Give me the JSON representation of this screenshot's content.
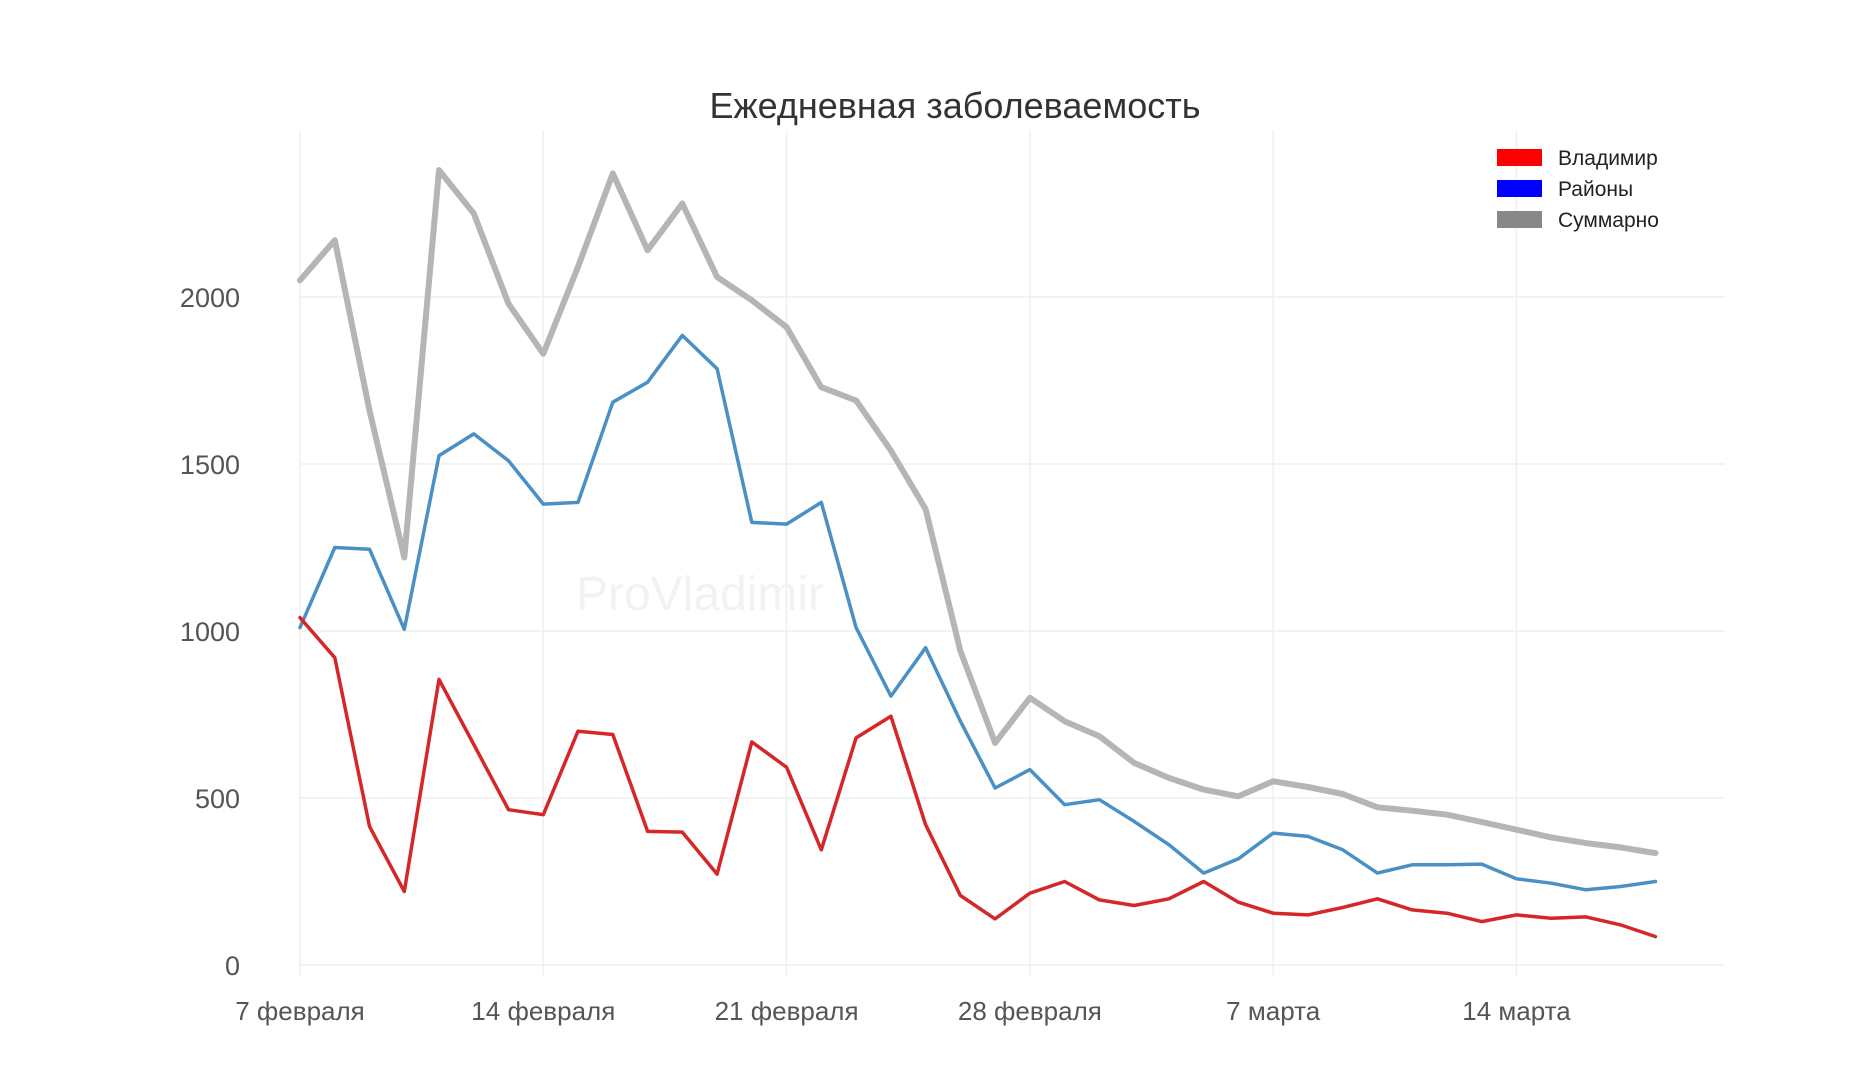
{
  "chart_data": {
    "type": "line",
    "title": "Ежедневная заболеваемость",
    "watermark": "ProVladimir",
    "xlabel": "",
    "ylabel": "",
    "x": [
      "2021-02-07",
      "2021-02-08",
      "2021-02-09",
      "2021-02-10",
      "2021-02-11",
      "2021-02-12",
      "2021-02-13",
      "2021-02-14",
      "2021-02-15",
      "2021-02-16",
      "2021-02-17",
      "2021-02-18",
      "2021-02-19",
      "2021-02-20",
      "2021-02-21",
      "2021-02-22",
      "2021-02-23",
      "2021-02-24",
      "2021-02-25",
      "2021-02-26",
      "2021-02-27",
      "2021-02-28",
      "2021-03-01",
      "2021-03-02",
      "2021-03-03",
      "2021-03-04",
      "2021-03-05",
      "2021-03-06",
      "2021-03-07",
      "2021-03-08",
      "2021-03-09",
      "2021-03-10",
      "2021-03-11",
      "2021-03-12",
      "2021-03-13",
      "2021-03-14",
      "2021-03-15",
      "2021-03-16",
      "2021-03-17",
      "2021-03-18"
    ],
    "xlim": [
      "2021-02-07",
      "2021-03-20"
    ],
    "ylim": [
      -30,
      2500
    ],
    "yticks": [
      0,
      500,
      1000,
      1500,
      2000
    ],
    "xticks": [
      {
        "x": "2021-02-07",
        "label": "7 февраля"
      },
      {
        "x": "2021-02-14",
        "label": "14 февраля"
      },
      {
        "x": "2021-02-21",
        "label": "21 февраля"
      },
      {
        "x": "2021-02-28",
        "label": "28 февраля"
      },
      {
        "x": "2021-03-07",
        "label": "7 марта"
      },
      {
        "x": "2021-03-14",
        "label": "14 марта"
      }
    ],
    "grid": true,
    "legend_position": "top-right",
    "series": [
      {
        "name": "Суммарно",
        "color": "#b5b5b5",
        "legend_color": "#888888",
        "values": [
          2050,
          2170,
          1660,
          1220,
          2380,
          2250,
          1980,
          1830,
          2090,
          2370,
          2140,
          2280,
          2060,
          1990,
          1910,
          1730,
          1690,
          1540,
          1365,
          940,
          665,
          800,
          730,
          685,
          605,
          560,
          525,
          505,
          550,
          533,
          512,
          472,
          462,
          450,
          428,
          405,
          382,
          365,
          352,
          335
        ]
      },
      {
        "name": "Районы",
        "color": "#4a90c4",
        "legend_color": "#0000ff",
        "values": [
          1010,
          1250,
          1245,
          1005,
          1525,
          1590,
          1510,
          1380,
          1385,
          1685,
          1745,
          1885,
          1785,
          1325,
          1320,
          1385,
          1010,
          805,
          950,
          730,
          530,
          585,
          480,
          495,
          430,
          360,
          275,
          318,
          395,
          385,
          345,
          275,
          300,
          300,
          302,
          258,
          245,
          225,
          235,
          250
        ]
      },
      {
        "name": "Владимир",
        "color": "#d62728",
        "legend_color": "#ff0000",
        "values": [
          1040,
          920,
          415,
          220,
          855,
          660,
          465,
          450,
          700,
          690,
          400,
          398,
          272,
          668,
          592,
          345,
          680,
          745,
          420,
          208,
          138,
          215,
          250,
          195,
          178,
          198,
          250,
          188,
          155,
          150,
          172,
          198,
          165,
          155,
          130,
          150,
          140,
          144,
          120,
          85
        ]
      }
    ]
  }
}
